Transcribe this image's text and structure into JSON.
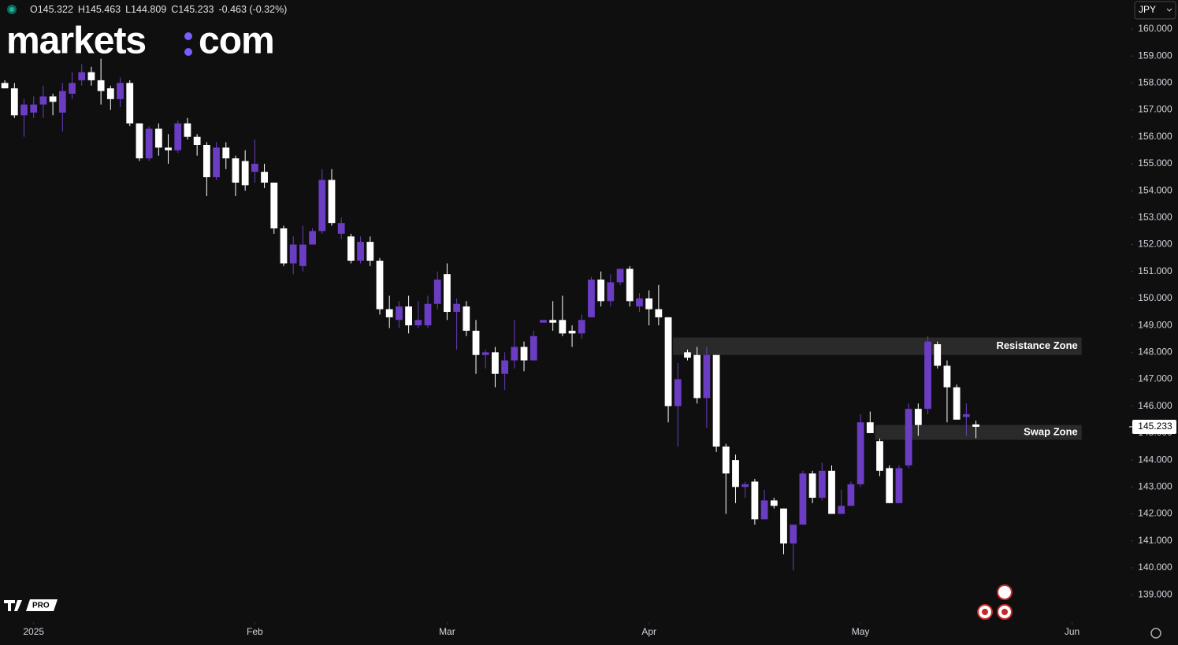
{
  "header": {
    "ohlc": [
      "O145.322",
      "H145.463",
      "L144.809",
      "C145.233",
      "-0.463 (-0.32%)"
    ],
    "currency": "JPY",
    "logo_left": "markets",
    "logo_right": "com",
    "badge": "PRO"
  },
  "chart_data": {
    "type": "candlestick",
    "up_color": "#6a3dc2",
    "down_color": "#ffffff",
    "open": [
      158.0,
      157.8,
      156.8,
      156.9,
      157.2,
      157.5,
      156.9,
      157.6,
      158.1,
      158.4,
      158.1,
      157.8,
      157.4,
      158.0,
      156.5,
      155.2,
      156.3,
      155.6,
      155.5,
      156.5,
      156.0,
      155.7,
      154.5,
      155.6,
      155.2,
      155.1,
      154.7,
      154.7,
      154.3,
      152.6,
      151.3,
      151.2,
      152.0,
      152.5,
      154.4,
      152.4,
      152.3,
      151.4,
      152.1,
      151.4,
      149.6,
      149.2,
      149.7,
      149.0,
      149.0,
      149.8,
      150.9,
      149.5,
      149.7,
      148.8,
      147.9,
      148.0,
      147.2,
      147.7,
      148.2,
      147.7,
      149.1,
      149.2,
      149.2,
      148.8,
      148.7,
      149.3,
      150.7,
      149.9,
      150.6,
      151.1,
      149.7,
      150.0,
      149.6,
      149.3,
      146.0,
      148.0,
      147.9,
      146.3,
      147.9,
      144.5,
      144.0,
      143.0,
      143.2,
      141.8,
      142.5,
      142.2,
      140.9,
      141.6,
      143.5,
      142.6,
      143.6,
      142.0,
      142.3,
      143.1,
      145.4,
      144.7,
      143.7,
      142.4,
      143.8,
      145.9,
      145.9,
      148.3,
      147.5,
      146.7,
      145.6,
      145.322
    ],
    "high": [
      158.1,
      158.0,
      157.4,
      157.5,
      157.9,
      157.6,
      158.0,
      158.4,
      158.7,
      158.6,
      158.9,
      157.9,
      158.2,
      158.1,
      156.5,
      156.4,
      156.5,
      156.1,
      156.6,
      156.7,
      156.1,
      155.8,
      155.8,
      155.8,
      155.3,
      155.5,
      155.9,
      155.0,
      154.3,
      152.7,
      152.3,
      152.7,
      152.6,
      154.8,
      154.8,
      153.0,
      152.4,
      152.3,
      152.3,
      151.5,
      150.1,
      149.9,
      150.1,
      149.9,
      150.1,
      151.0,
      151.3,
      150.0,
      149.9,
      149.2,
      148.1,
      148.2,
      148.0,
      149.2,
      148.4,
      148.8,
      149.2,
      149.9,
      150.1,
      149.0,
      149.4,
      150.8,
      151.0,
      150.9,
      151.1,
      151.2,
      150.2,
      150.3,
      150.5,
      149.3,
      147.6,
      148.1,
      148.2,
      148.2,
      147.9,
      144.6,
      144.2,
      143.2,
      143.3,
      142.9,
      142.6,
      142.2,
      141.6,
      143.6,
      143.6,
      143.9,
      143.8,
      142.9,
      143.2,
      145.7,
      145.8,
      144.8,
      143.8,
      143.8,
      146.1,
      146.1,
      148.6,
      148.4,
      147.7,
      146.8,
      146.1,
      145.463
    ],
    "low": [
      157.8,
      156.7,
      156.0,
      156.7,
      156.7,
      156.8,
      156.2,
      157.4,
      157.9,
      157.9,
      157.2,
      157.0,
      157.1,
      156.4,
      155.1,
      155.1,
      155.3,
      155.0,
      155.4,
      155.9,
      155.3,
      153.8,
      154.4,
      154.8,
      153.8,
      154.0,
      154.3,
      154.1,
      152.4,
      151.2,
      150.9,
      151.0,
      152.0,
      152.4,
      152.7,
      152.2,
      151.3,
      151.3,
      151.2,
      149.4,
      148.9,
      148.9,
      148.7,
      148.9,
      148.9,
      149.6,
      149.2,
      148.1,
      148.6,
      147.2,
      147.4,
      146.7,
      146.6,
      147.4,
      147.3,
      147.7,
      149.1,
      148.8,
      148.6,
      148.2,
      148.5,
      149.3,
      149.7,
      149.7,
      150.5,
      149.7,
      149.5,
      149.0,
      149.0,
      145.4,
      144.5,
      147.7,
      146.1,
      145.2,
      144.3,
      142.0,
      142.4,
      142.6,
      141.6,
      141.8,
      142.2,
      140.5,
      139.9,
      141.6,
      142.4,
      142.5,
      142.0,
      142.0,
      142.3,
      143.0,
      145.0,
      143.4,
      142.4,
      142.4,
      143.7,
      144.9,
      145.7,
      147.4,
      145.4,
      145.5,
      144.9,
      144.809
    ],
    "close": [
      157.8,
      156.8,
      157.2,
      157.2,
      157.5,
      157.3,
      157.7,
      158.0,
      158.4,
      158.1,
      157.7,
      157.4,
      158.0,
      156.5,
      155.2,
      156.3,
      155.6,
      155.5,
      156.5,
      156.0,
      155.7,
      154.5,
      155.6,
      155.2,
      154.3,
      154.2,
      155.0,
      154.3,
      152.6,
      151.3,
      152.0,
      152.0,
      152.5,
      154.4,
      152.8,
      152.8,
      151.4,
      152.1,
      151.4,
      149.6,
      149.3,
      149.7,
      149.0,
      149.2,
      149.8,
      150.7,
      149.5,
      149.8,
      148.8,
      147.9,
      148.0,
      147.2,
      147.7,
      148.2,
      147.7,
      148.6,
      149.2,
      149.1,
      148.7,
      148.7,
      149.2,
      150.7,
      149.9,
      150.6,
      151.1,
      149.9,
      150.0,
      149.6,
      149.3,
      146.0,
      147.0,
      147.8,
      146.3,
      147.9,
      144.5,
      143.5,
      143.0,
      143.1,
      141.8,
      142.5,
      142.3,
      140.9,
      141.6,
      143.5,
      142.6,
      143.6,
      142.0,
      142.3,
      143.1,
      145.4,
      145.0,
      143.6,
      142.4,
      143.7,
      145.9,
      145.3,
      148.4,
      147.5,
      146.7,
      145.5,
      145.7,
      145.233
    ],
    "xlim": [
      -0.5,
      117.1
    ],
    "xticks": [
      {
        "value": 3,
        "label": "2025"
      },
      {
        "value": 26,
        "label": "Feb"
      },
      {
        "value": 46,
        "label": "Mar"
      },
      {
        "value": 67,
        "label": "Apr"
      },
      {
        "value": 89,
        "label": "May"
      },
      {
        "value": 111,
        "label": "Jun"
      }
    ],
    "ylim": [
      137.98,
      161.08
    ],
    "yticks": [
      {
        "value": 139,
        "label": "139.000"
      },
      {
        "value": 140,
        "label": "140.000"
      },
      {
        "value": 141,
        "label": "141.000"
      },
      {
        "value": 142,
        "label": "142.000"
      },
      {
        "value": 143,
        "label": "143.000"
      },
      {
        "value": 144,
        "label": "144.000"
      },
      {
        "value": 145,
        "label": "145.000"
      },
      {
        "value": 146,
        "label": "146.000"
      },
      {
        "value": 147,
        "label": "147.000"
      },
      {
        "value": 148,
        "label": "148.000"
      },
      {
        "value": 149,
        "label": "149.000"
      },
      {
        "value": 150,
        "label": "150.000"
      },
      {
        "value": 151,
        "label": "151.000"
      },
      {
        "value": 152,
        "label": "152.000"
      },
      {
        "value": 153,
        "label": "153.000"
      },
      {
        "value": 154,
        "label": "154.000"
      },
      {
        "value": 155,
        "label": "155.000"
      },
      {
        "value": 156,
        "label": "156.000"
      },
      {
        "value": 157,
        "label": "157.000"
      },
      {
        "value": 158,
        "label": "158.000"
      },
      {
        "value": 159,
        "label": "159.000"
      },
      {
        "value": 160,
        "label": "160.000"
      }
    ],
    "last_price": 145.233,
    "zones": [
      {
        "text": "Resistance Zone",
        "y": [
          147.9,
          148.55
        ],
        "x": [
          69.5,
          112
        ]
      },
      {
        "text": "Swap Zone",
        "y": [
          144.75,
          145.3
        ],
        "x": [
          90.5,
          112
        ]
      }
    ]
  }
}
